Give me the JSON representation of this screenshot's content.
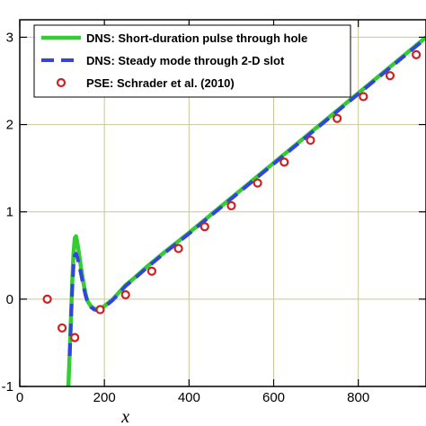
{
  "chart_data": {
    "type": "line",
    "xlabel": "x",
    "ylabel": "",
    "xlim": [
      0,
      960
    ],
    "ylim": [
      -1,
      3.2
    ],
    "x_ticks": [
      0,
      200,
      400,
      600,
      800
    ],
    "x_tick_labels": [
      "0",
      "200",
      "400",
      "600",
      "800"
    ],
    "y_ticks": [
      -1,
      0,
      1,
      2,
      3
    ],
    "y_tick_labels": [
      "-1",
      "0",
      "1",
      "2",
      "3"
    ],
    "grid": true,
    "legend_position": "top-left",
    "series": [
      {
        "name": "DNS: Short-duration pulse through hole",
        "style": "solid",
        "color": "#33cc33",
        "x": [
          115,
          118,
          121,
          124,
          127,
          130,
          133,
          136,
          140,
          145,
          150,
          155,
          160,
          168,
          176,
          184,
          192,
          200,
          210,
          220,
          235,
          250,
          270,
          300,
          340,
          400,
          500,
          600,
          700,
          800,
          900,
          960
        ],
        "y": [
          -1.0,
          -0.6,
          -0.2,
          0.2,
          0.52,
          0.7,
          0.72,
          0.65,
          0.52,
          0.35,
          0.2,
          0.07,
          -0.02,
          -0.08,
          -0.11,
          -0.12,
          -0.11,
          -0.08,
          -0.04,
          0.0,
          0.08,
          0.16,
          0.24,
          0.37,
          0.53,
          0.76,
          1.16,
          1.56,
          1.96,
          2.36,
          2.76,
          3.0
        ]
      },
      {
        "name": "DNS: Steady mode through 2-D slot",
        "style": "dashed",
        "color": "#3344dd",
        "x": [
          118,
          121,
          124,
          127,
          130,
          133,
          136,
          140,
          145,
          150,
          155,
          160,
          168,
          176,
          184,
          192,
          200,
          210,
          220,
          235,
          250,
          270,
          300,
          340,
          400,
          500,
          600,
          700,
          800,
          900,
          960
        ],
        "y": [
          -0.65,
          -0.25,
          0.12,
          0.38,
          0.5,
          0.52,
          0.48,
          0.4,
          0.28,
          0.16,
          0.05,
          -0.03,
          -0.09,
          -0.12,
          -0.13,
          -0.12,
          -0.09,
          -0.05,
          -0.01,
          0.07,
          0.15,
          0.23,
          0.36,
          0.52,
          0.75,
          1.15,
          1.55,
          1.95,
          2.35,
          2.75,
          2.99
        ]
      },
      {
        "name": "PSE: Schrader et al. (2010)",
        "style": "marker",
        "color": "#cc2222",
        "x": [
          65,
          100,
          130,
          190,
          250,
          312,
          375,
          437,
          500,
          562,
          625,
          687,
          750,
          812,
          875,
          937
        ],
        "y": [
          0.0,
          -0.33,
          -0.44,
          -0.12,
          0.05,
          0.32,
          0.58,
          0.83,
          1.07,
          1.33,
          1.57,
          1.82,
          2.07,
          2.32,
          2.56,
          2.8
        ]
      }
    ]
  }
}
